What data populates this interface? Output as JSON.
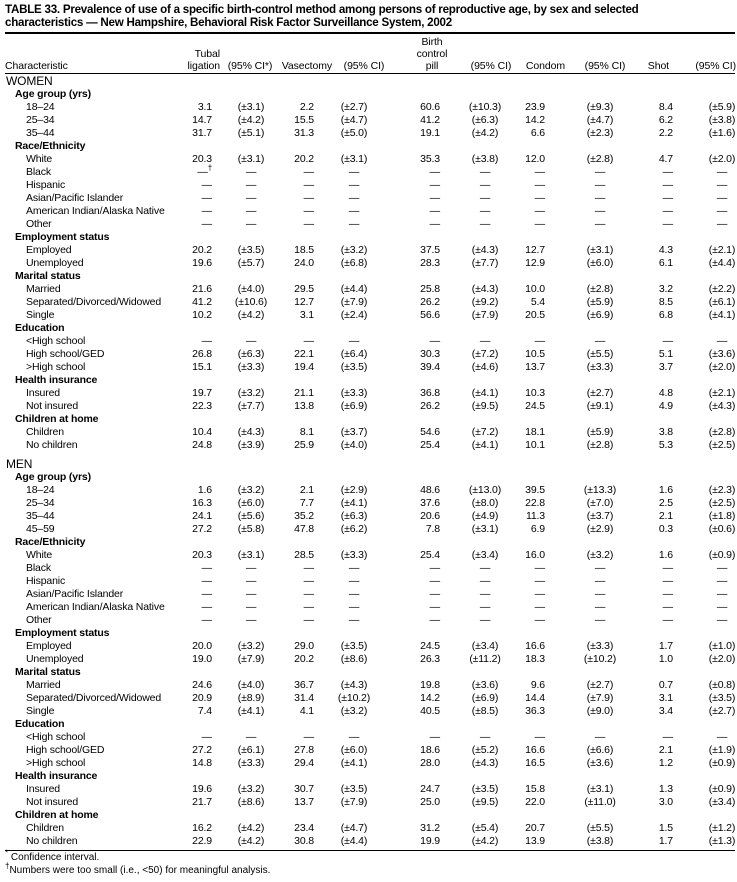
{
  "title": {
    "line1": "TABLE 33. Prevalence of use of a specific birth-control method among persons of reproductive age, by sex and selected",
    "line2": "characteristics — New Hampshire, Behavioral Risk Factor Surveillance System, 2002"
  },
  "headers": {
    "characteristic": "Characteristic",
    "tubal_1": "Tubal",
    "tubal_2": "ligation",
    "ci_star": "(95% CI*)",
    "vasectomy": "Vasectomy",
    "ci": "(95% CI)",
    "pill_1": "Birth",
    "pill_2": "control",
    "pill_3": "pill",
    "condom": "Condom",
    "shot": "Shot"
  },
  "sections": [
    {
      "label": "WOMEN",
      "groups": [
        {
          "label": "Age group (yrs)",
          "rows": [
            {
              "label": "18–24",
              "values": [
                "3.1",
                "(±3.1)",
                "2.2",
                "(±2.7)",
                "60.6",
                "(±10.3)",
                "23.9",
                "(±9.3)",
                "8.4",
                "(±5.9)"
              ]
            },
            {
              "label": "25–34",
              "values": [
                "14.7",
                "(±4.2)",
                "15.5",
                "(±4.7)",
                "41.2",
                "(±6.3)",
                "14.2",
                "(±4.7)",
                "6.2",
                "(±3.8)"
              ]
            },
            {
              "label": "35–44",
              "values": [
                "31.7",
                "(±5.1)",
                "31.3",
                "(±5.0)",
                "19.1",
                "(±4.2)",
                "6.6",
                "(±2.3)",
                "2.2",
                "(±1.6)"
              ]
            }
          ]
        },
        {
          "label": "Race/Ethnicity",
          "rows": [
            {
              "label": "White",
              "values": [
                "20.3",
                "(±3.1)",
                "20.2",
                "(±3.1)",
                "35.3",
                "(±3.8)",
                "12.0",
                "(±2.8)",
                "4.7",
                "(±2.0)"
              ]
            },
            {
              "label": "Black",
              "values": [
                "—",
                "—",
                "—",
                "—",
                "—",
                "—",
                "—",
                "—",
                "—",
                "—"
              ],
              "note": "†"
            },
            {
              "label": "Hispanic",
              "values": [
                "—",
                "—",
                "—",
                "—",
                "—",
                "—",
                "—",
                "—",
                "—",
                "—"
              ]
            },
            {
              "label": "Asian/Pacific Islander",
              "values": [
                "—",
                "—",
                "—",
                "—",
                "—",
                "—",
                "—",
                "—",
                "—",
                "—"
              ]
            },
            {
              "label": "American Indian/Alaska Native",
              "values": [
                "—",
                "—",
                "—",
                "—",
                "—",
                "—",
                "—",
                "—",
                "—",
                "—"
              ]
            },
            {
              "label": "Other",
              "values": [
                "—",
                "—",
                "—",
                "—",
                "—",
                "—",
                "—",
                "—",
                "—",
                "—"
              ]
            }
          ]
        },
        {
          "label": "Employment status",
          "rows": [
            {
              "label": "Employed",
              "values": [
                "20.2",
                "(±3.5)",
                "18.5",
                "(±3.2)",
                "37.5",
                "(±4.3)",
                "12.7",
                "(±3.1)",
                "4.3",
                "(±2.1)"
              ]
            },
            {
              "label": "Unemployed",
              "values": [
                "19.6",
                "(±5.7)",
                "24.0",
                "(±6.8)",
                "28.3",
                "(±7.7)",
                "12.9",
                "(±6.0)",
                "6.1",
                "(±4.4)"
              ]
            }
          ]
        },
        {
          "label": "Marital status",
          "rows": [
            {
              "label": "Married",
              "values": [
                "21.6",
                "(±4.0)",
                "29.5",
                "(±4.4)",
                "25.8",
                "(±4.3)",
                "10.0",
                "(±2.8)",
                "3.2",
                "(±2.2)"
              ]
            },
            {
              "label": "Separated/Divorced/Widowed",
              "values": [
                "41.2",
                "(±10.6)",
                "12.7",
                "(±7.9)",
                "26.2",
                "(±9.2)",
                "5.4",
                "(±5.9)",
                "8.5",
                "(±6.1)"
              ]
            },
            {
              "label": "Single",
              "values": [
                "10.2",
                "(±4.2)",
                "3.1",
                "(±2.4)",
                "56.6",
                "(±7.9)",
                "20.5",
                "(±6.9)",
                "6.8",
                "(±4.1)"
              ]
            }
          ]
        },
        {
          "label": "Education",
          "rows": [
            {
              "label": "<High school",
              "values": [
                "—",
                "—",
                "—",
                "—",
                "—",
                "—",
                "—",
                "—",
                "—",
                "—"
              ]
            },
            {
              "label": "High school/GED",
              "values": [
                "26.8",
                "(±6.3)",
                "22.1",
                "(±6.4)",
                "30.3",
                "(±7.2)",
                "10.5",
                "(±5.5)",
                "5.1",
                "(±3.6)"
              ]
            },
            {
              "label": ">High school",
              "values": [
                "15.1",
                "(±3.3)",
                "19.4",
                "(±3.5)",
                "39.4",
                "(±4.6)",
                "13.7",
                "(±3.3)",
                "3.7",
                "(±2.0)"
              ]
            }
          ]
        },
        {
          "label": "Health insurance",
          "rows": [
            {
              "label": "Insured",
              "values": [
                "19.7",
                "(±3.2)",
                "21.1",
                "(±3.3)",
                "36.8",
                "(±4.1)",
                "10.3",
                "(±2.7)",
                "4.8",
                "(±2.1)"
              ]
            },
            {
              "label": "Not insured",
              "values": [
                "22.3",
                "(±7.7)",
                "13.8",
                "(±6.9)",
                "26.2",
                "(±9.5)",
                "24.5",
                "(±9.1)",
                "4.9",
                "(±4.3)"
              ]
            }
          ]
        },
        {
          "label": "Children at home",
          "rows": [
            {
              "label": "Children",
              "values": [
                "10.4",
                "(±4.3)",
                "8.1",
                "(±3.7)",
                "54.6",
                "(±7.2)",
                "18.1",
                "(±5.9)",
                "3.8",
                "(±2.8)"
              ]
            },
            {
              "label": "No children",
              "values": [
                "24.8",
                "(±3.9)",
                "25.9",
                "(±4.0)",
                "25.4",
                "(±4.1)",
                "10.1",
                "(±2.8)",
                "5.3",
                "(±2.5)"
              ]
            }
          ]
        }
      ]
    },
    {
      "label": "MEN",
      "groups": [
        {
          "label": "Age group (yrs)",
          "rows": [
            {
              "label": "18–24",
              "values": [
                "1.6",
                "(±3.2)",
                "2.1",
                "(±2.9)",
                "48.6",
                "(±13.0)",
                "39.5",
                "(±13.3)",
                "1.6",
                "(±2.3)"
              ]
            },
            {
              "label": "25–34",
              "values": [
                "16.3",
                "(±6.0)",
                "7.7",
                "(±4.1)",
                "37.6",
                "(±8.0)",
                "22.8",
                "(±7.0)",
                "2.5",
                "(±2.5)"
              ]
            },
            {
              "label": "35–44",
              "values": [
                "24.1",
                "(±5.6)",
                "35.2",
                "(±6.3)",
                "20.6",
                "(±4.9)",
                "11.3",
                "(±3.7)",
                "2.1",
                "(±1.8)"
              ]
            },
            {
              "label": "45–59",
              "values": [
                "27.2",
                "(±5.8)",
                "47.8",
                "(±6.2)",
                "7.8",
                "(±3.1)",
                "6.9",
                "(±2.9)",
                "0.3",
                "(±0.6)"
              ]
            }
          ]
        },
        {
          "label": "Race/Ethnicity",
          "rows": [
            {
              "label": "White",
              "values": [
                "20.3",
                "(±3.1)",
                "28.5",
                "(±3.3)",
                "25.4",
                "(±3.4)",
                "16.0",
                "(±3.2)",
                "1.6",
                "(±0.9)"
              ]
            },
            {
              "label": "Black",
              "values": [
                "—",
                "—",
                "—",
                "—",
                "—",
                "—",
                "—",
                "—",
                "—",
                "—"
              ]
            },
            {
              "label": "Hispanic",
              "values": [
                "—",
                "—",
                "—",
                "—",
                "—",
                "—",
                "—",
                "—",
                "—",
                "—"
              ]
            },
            {
              "label": "Asian/Pacific Islander",
              "values": [
                "—",
                "—",
                "—",
                "—",
                "—",
                "—",
                "—",
                "—",
                "—",
                "—"
              ]
            },
            {
              "label": "American Indian/Alaska Native",
              "values": [
                "—",
                "—",
                "—",
                "—",
                "—",
                "—",
                "—",
                "—",
                "—",
                "—"
              ]
            },
            {
              "label": "Other",
              "values": [
                "—",
                "—",
                "—",
                "—",
                "—",
                "—",
                "—",
                "—",
                "—",
                "—"
              ]
            }
          ]
        },
        {
          "label": "Employment status",
          "rows": [
            {
              "label": "Employed",
              "values": [
                "20.0",
                "(±3.2)",
                "29.0",
                "(±3.5)",
                "24.5",
                "(±3.4)",
                "16.6",
                "(±3.3)",
                "1.7",
                "(±1.0)"
              ]
            },
            {
              "label": "Unemployed",
              "values": [
                "19.0",
                "(±7.9)",
                "20.2",
                "(±8.6)",
                "26.3",
                "(±11.2)",
                "18.3",
                "(±10.2)",
                "1.0",
                "(±2.0)"
              ]
            }
          ]
        },
        {
          "label": "Marital status",
          "rows": [
            {
              "label": "Married",
              "values": [
                "24.6",
                "(±4.0)",
                "36.7",
                "(±4.3)",
                "19.8",
                "(±3.6)",
                "9.6",
                "(±2.7)",
                "0.7",
                "(±0.8)"
              ]
            },
            {
              "label": "Separated/Divorced/Widowed",
              "values": [
                "20.9",
                "(±8.9)",
                "31.4",
                "(±10.2)",
                "14.2",
                "(±6.9)",
                "14.4",
                "(±7.9)",
                "3.1",
                "(±3.5)"
              ]
            },
            {
              "label": "Single",
              "values": [
                "7.4",
                "(±4.1)",
                "4.1",
                "(±3.2)",
                "40.5",
                "(±8.5)",
                "36.3",
                "(±9.0)",
                "3.4",
                "(±2.7)"
              ]
            }
          ]
        },
        {
          "label": "Education",
          "rows": [
            {
              "label": "<High school",
              "values": [
                "—",
                "—",
                "—",
                "—",
                "—",
                "—",
                "—",
                "—",
                "—",
                "—"
              ]
            },
            {
              "label": "High school/GED",
              "values": [
                "27.2",
                "(±6.1)",
                "27.8",
                "(±6.0)",
                "18.6",
                "(±5.2)",
                "16.6",
                "(±6.6)",
                "2.1",
                "(±1.9)"
              ]
            },
            {
              "label": ">High school",
              "values": [
                "14.8",
                "(±3.3)",
                "29.4",
                "(±4.1)",
                "28.0",
                "(±4.3)",
                "16.5",
                "(±3.6)",
                "1.2",
                "(±0.9)"
              ]
            }
          ]
        },
        {
          "label": "Health insurance",
          "rows": [
            {
              "label": "Insured",
              "values": [
                "19.6",
                "(±3.2)",
                "30.7",
                "(±3.5)",
                "24.7",
                "(±3.5)",
                "15.8",
                "(±3.1)",
                "1.3",
                "(±0.9)"
              ]
            },
            {
              "label": "Not insured",
              "values": [
                "21.7",
                "(±8.6)",
                "13.7",
                "(±7.9)",
                "25.0",
                "(±9.5)",
                "22.0",
                "(±11.0)",
                "3.0",
                "(±3.4)"
              ]
            }
          ]
        },
        {
          "label": "Children at home",
          "rows": [
            {
              "label": "Children",
              "values": [
                "16.2",
                "(±4.2)",
                "23.4",
                "(±4.7)",
                "31.2",
                "(±5.4)",
                "20.7",
                "(±5.5)",
                "1.5",
                "(±1.2)"
              ]
            },
            {
              "label": "No children",
              "values": [
                "22.9",
                "(±4.2)",
                "30.8",
                "(±4.4)",
                "19.9",
                "(±4.2)",
                "13.9",
                "(±3.8)",
                "1.7",
                "(±1.3)"
              ]
            }
          ]
        }
      ]
    }
  ],
  "footnotes": {
    "star_mark": "*",
    "star": "Confidence interval.",
    "dagger_mark": "†",
    "dagger": "Numbers were too small (i.e., <50) for meaningful analysis."
  }
}
